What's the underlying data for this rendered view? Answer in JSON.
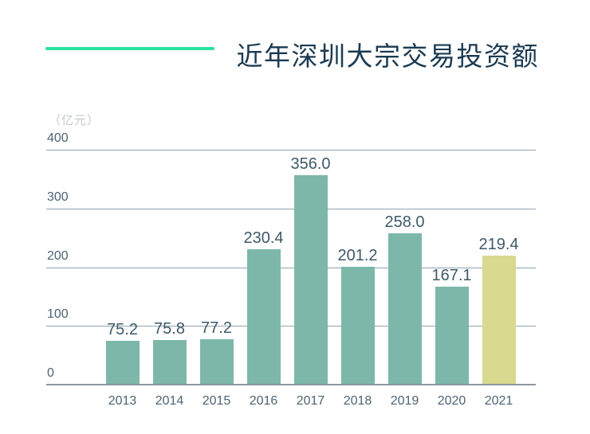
{
  "title": "近年深圳大宗交易投资额",
  "unit_label": "（亿元）",
  "colors": {
    "background": "#ffffff",
    "accent_line": "#27e2a0",
    "title_text": "#1b3a52",
    "bar": "#7db7a9",
    "bar_highlight": "#d9d98f",
    "gridline": "#8fa3b2",
    "baseline": "#8c979e",
    "axis_text": "#4c6374",
    "value_text": "#3e5a68",
    "unit_text": "#c5cacd"
  },
  "chart_data": {
    "type": "bar",
    "title": "近年深圳大宗交易投资额",
    "unit": "亿元",
    "categories": [
      "2013",
      "2014",
      "2015",
      "2016",
      "2017",
      "2018",
      "2019",
      "2020",
      "2021"
    ],
    "values": [
      75.2,
      75.8,
      77.2,
      230.4,
      356.0,
      201.2,
      258.0,
      167.1,
      219.4
    ],
    "value_labels": [
      "75.2",
      "75.8",
      "77.2",
      "230.4",
      "356.0",
      "201.2",
      "258.0",
      "167.1",
      "219.4"
    ],
    "highlight_index": 8,
    "y_ticks": [
      400,
      300,
      200,
      100,
      0
    ],
    "ylim": [
      0,
      400
    ],
    "xlabel": "",
    "ylabel": "",
    "grid": true,
    "legend": false
  }
}
